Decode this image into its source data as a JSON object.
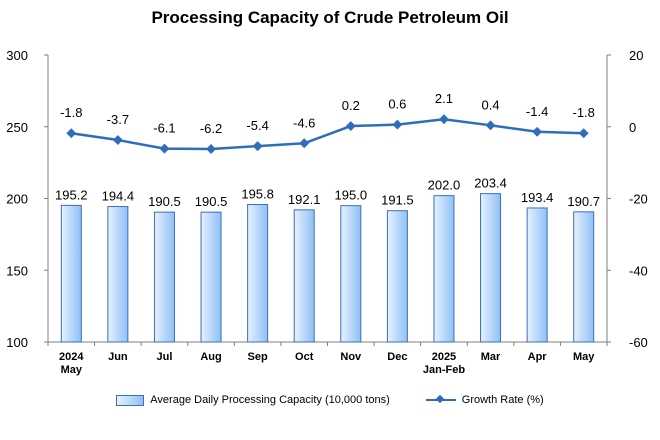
{
  "chart_data": {
    "type": "bar",
    "title": "Processing Capacity of Crude Petroleum Oil",
    "categories": [
      "2024\nMay",
      "Jun",
      "Jul",
      "Aug",
      "Sep",
      "Oct",
      "Nov",
      "Dec",
      "2025\nJan-Feb",
      "Mar",
      "Apr",
      "May"
    ],
    "series": [
      {
        "name": "Average Daily Processing Capacity (10,000 tons)",
        "type": "bar",
        "axis": "left",
        "values": [
          195.2,
          194.4,
          190.5,
          190.5,
          195.8,
          192.1,
          195.0,
          191.5,
          202.0,
          203.4,
          193.4,
          190.7
        ],
        "labels": [
          "195.2",
          "194.4",
          "190.5",
          "190.5",
          "195.8",
          "192.1",
          "195.0",
          "191.5",
          "202.0",
          "203.4",
          "193.4",
          "190.7"
        ],
        "color": "#8fc0f5"
      },
      {
        "name": "Growth Rate (%)",
        "type": "line",
        "axis": "right",
        "values": [
          -1.8,
          -3.7,
          -6.1,
          -6.2,
          -5.4,
          -4.6,
          0.2,
          0.6,
          2.1,
          0.4,
          -1.4,
          -1.8
        ],
        "labels": [
          "-1.8",
          "-3.7",
          "-6.1",
          "-6.2",
          "-5.4",
          "-4.6",
          "0.2",
          "0.6",
          "2.1",
          "0.4",
          "-1.4",
          "-1.8"
        ],
        "color": "#2e6dbb"
      }
    ],
    "ylim_left": [
      100,
      300
    ],
    "yticks_left": [
      "100",
      "150",
      "200",
      "250",
      "300"
    ],
    "ylim_right": [
      -60,
      20
    ],
    "yticks_right": [
      "-60",
      "-40",
      "-20",
      "0",
      "20"
    ],
    "grid": false,
    "legend_position": "bottom"
  }
}
